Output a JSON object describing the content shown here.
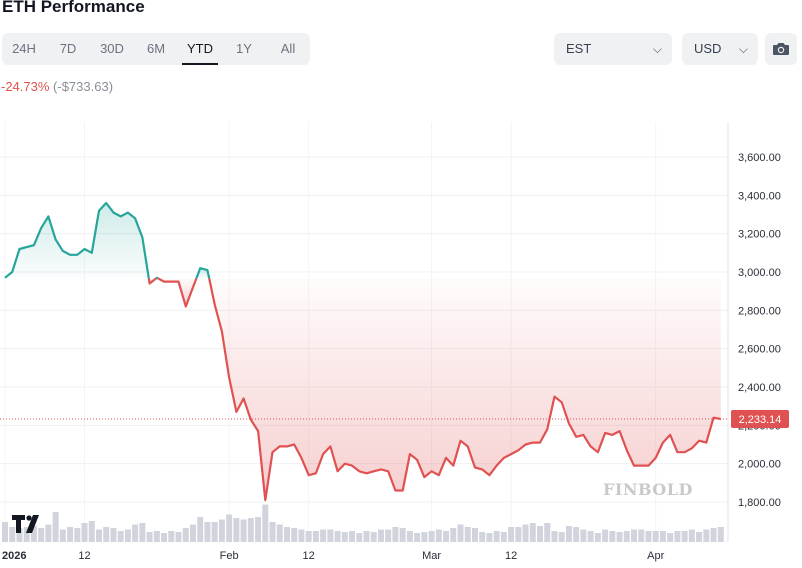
{
  "header": {
    "title": "ETH Performance"
  },
  "range_tabs": [
    {
      "label": "24H"
    },
    {
      "label": "7D"
    },
    {
      "label": "30D"
    },
    {
      "label": "6M"
    },
    {
      "label": "YTD",
      "active": true
    },
    {
      "label": "1Y"
    },
    {
      "label": "All"
    }
  ],
  "timezone_select": {
    "value": "EST"
  },
  "currency_select": {
    "value": "USD"
  },
  "camera_button": {
    "icon": "camera-icon"
  },
  "performance": {
    "change_pct": "-24.73%",
    "change_abs": "(-$733.63)"
  },
  "watermark": "FINBOLD",
  "colors": {
    "up": "#26a69a",
    "down": "#e05252",
    "volume": "#d1d4dc",
    "price_label_bg": "#e05252"
  },
  "chart_data": {
    "type": "line",
    "title": "",
    "xlabel": "",
    "ylabel": "",
    "ylim": [
      1700,
      3700
    ],
    "y_ticks": [
      1800,
      2000,
      2200,
      2400,
      2600,
      2800,
      3000,
      3200,
      3400,
      3600
    ],
    "y_tick_labels": [
      "1,800.00",
      "2,000.00",
      "2,200.00",
      "2,400.00",
      "2,600.00",
      "2,800.00",
      "3,000.00",
      "3,200.00",
      "3,400.00",
      "3,600.00"
    ],
    "x_ticks": [
      {
        "date": "2026-01-01",
        "label": "2026",
        "bold": true
      },
      {
        "date": "2026-01-12",
        "label": "12"
      },
      {
        "date": "2026-02-01",
        "label": "Feb"
      },
      {
        "date": "2026-02-12",
        "label": "12"
      },
      {
        "date": "2026-03-01",
        "label": "Mar"
      },
      {
        "date": "2026-03-12",
        "label": "12"
      },
      {
        "date": "2026-04-01",
        "label": "Apr"
      }
    ],
    "baseline": 2966.77,
    "last_price": 2233.14,
    "last_price_label": "2,233.14",
    "grid": true,
    "series": [
      {
        "points": [
          [
            "2026-01-01",
            2970
          ],
          [
            "2026-01-02",
            3000
          ],
          [
            "2026-01-03",
            3120
          ],
          [
            "2026-01-04",
            3130
          ],
          [
            "2026-01-05",
            3140
          ],
          [
            "2026-01-06",
            3230
          ],
          [
            "2026-01-07",
            3290
          ],
          [
            "2026-01-08",
            3170
          ],
          [
            "2026-01-09",
            3110
          ],
          [
            "2026-01-10",
            3090
          ],
          [
            "2026-01-11",
            3090
          ],
          [
            "2026-01-12",
            3120
          ],
          [
            "2026-01-13",
            3100
          ],
          [
            "2026-01-14",
            3320
          ],
          [
            "2026-01-15",
            3360
          ],
          [
            "2026-01-16",
            3310
          ],
          [
            "2026-01-17",
            3290
          ],
          [
            "2026-01-18",
            3310
          ],
          [
            "2026-01-19",
            3280
          ],
          [
            "2026-01-20",
            3180
          ],
          [
            "2026-01-21",
            2940
          ],
          [
            "2026-01-22",
            2970
          ],
          [
            "2026-01-23",
            2950
          ],
          [
            "2026-01-24",
            2950
          ],
          [
            "2026-01-25",
            2950
          ],
          [
            "2026-01-26",
            2820
          ],
          [
            "2026-01-27",
            2920
          ],
          [
            "2026-01-28",
            3020
          ],
          [
            "2026-01-29",
            3010
          ],
          [
            "2026-01-30",
            2830
          ],
          [
            "2026-01-31",
            2690
          ],
          [
            "2026-02-01",
            2450
          ],
          [
            "2026-02-02",
            2270
          ],
          [
            "2026-02-03",
            2340
          ],
          [
            "2026-02-04",
            2230
          ],
          [
            "2026-02-05",
            2170
          ],
          [
            "2026-02-06",
            1810
          ],
          [
            "2026-02-07",
            2060
          ],
          [
            "2026-02-08",
            2090
          ],
          [
            "2026-02-09",
            2090
          ],
          [
            "2026-02-10",
            2100
          ],
          [
            "2026-02-11",
            2030
          ],
          [
            "2026-02-12",
            1940
          ],
          [
            "2026-02-13",
            1950
          ],
          [
            "2026-02-14",
            2050
          ],
          [
            "2026-02-15",
            2090
          ],
          [
            "2026-02-16",
            1960
          ],
          [
            "2026-02-17",
            2000
          ],
          [
            "2026-02-18",
            1990
          ],
          [
            "2026-02-19",
            1960
          ],
          [
            "2026-02-20",
            1950
          ],
          [
            "2026-02-21",
            1960
          ],
          [
            "2026-02-22",
            1970
          ],
          [
            "2026-02-23",
            1960
          ],
          [
            "2026-02-24",
            1860
          ],
          [
            "2026-02-25",
            1860
          ],
          [
            "2026-02-26",
            2050
          ],
          [
            "2026-02-27",
            2020
          ],
          [
            "2026-02-28",
            1930
          ],
          [
            "2026-03-01",
            1960
          ],
          [
            "2026-03-02",
            1940
          ],
          [
            "2026-03-03",
            2030
          ],
          [
            "2026-03-04",
            1990
          ],
          [
            "2026-03-05",
            2120
          ],
          [
            "2026-03-06",
            2090
          ],
          [
            "2026-03-07",
            1980
          ],
          [
            "2026-03-08",
            1970
          ],
          [
            "2026-03-09",
            1940
          ],
          [
            "2026-03-10",
            1990
          ],
          [
            "2026-03-11",
            2030
          ],
          [
            "2026-03-12",
            2050
          ],
          [
            "2026-03-13",
            2070
          ],
          [
            "2026-03-14",
            2100
          ],
          [
            "2026-03-15",
            2110
          ],
          [
            "2026-03-16",
            2110
          ],
          [
            "2026-03-17",
            2180
          ],
          [
            "2026-03-18",
            2350
          ],
          [
            "2026-03-19",
            2320
          ],
          [
            "2026-03-20",
            2210
          ],
          [
            "2026-03-21",
            2140
          ],
          [
            "2026-03-22",
            2150
          ],
          [
            "2026-03-23",
            2090
          ],
          [
            "2026-03-24",
            2060
          ],
          [
            "2026-03-25",
            2160
          ],
          [
            "2026-03-26",
            2150
          ],
          [
            "2026-03-27",
            2170
          ],
          [
            "2026-03-28",
            2070
          ],
          [
            "2026-03-29",
            1990
          ],
          [
            "2026-03-30",
            1990
          ],
          [
            "2026-03-31",
            1990
          ],
          [
            "2026-04-01",
            2030
          ],
          [
            "2026-04-02",
            2110
          ],
          [
            "2026-04-03",
            2150
          ],
          [
            "2026-04-04",
            2060
          ],
          [
            "2026-04-05",
            2060
          ],
          [
            "2026-04-06",
            2080
          ],
          [
            "2026-04-07",
            2120
          ],
          [
            "2026-04-08",
            2110
          ],
          [
            "2026-04-09",
            2240
          ],
          [
            "2026-04-10",
            2233.14
          ]
        ],
        "volume": [
          40,
          30,
          28,
          30,
          32,
          28,
          35,
          60,
          25,
          30,
          28,
          38,
          42,
          25,
          30,
          28,
          22,
          25,
          35,
          38,
          20,
          22,
          18,
          22,
          20,
          28,
          35,
          50,
          40,
          40,
          45,
          55,
          48,
          45,
          48,
          50,
          75,
          40,
          35,
          30,
          28,
          25,
          22,
          22,
          25,
          25,
          22,
          20,
          22,
          18,
          22,
          20,
          25,
          25,
          30,
          28,
          22,
          18,
          20,
          22,
          25,
          22,
          28,
          35,
          30,
          28,
          20,
          18,
          22,
          20,
          30,
          30,
          35,
          38,
          32,
          38,
          22,
          20,
          32,
          30,
          25,
          22,
          18,
          25,
          22,
          20,
          22,
          25,
          25,
          22,
          22,
          22,
          18,
          22,
          22,
          25,
          20,
          25,
          28,
          30
        ]
      }
    ]
  }
}
